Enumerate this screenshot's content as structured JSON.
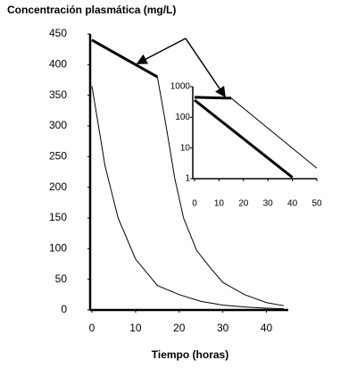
{
  "chart_data": [
    {
      "type": "line",
      "title": "Concentración plasmática (mg/L)",
      "x_label": "Tiempo (horas)",
      "xlim": [
        0,
        45
      ],
      "ylim": [
        0,
        450
      ],
      "xticks": [
        0,
        10,
        20,
        30,
        40
      ],
      "yticks": [
        0,
        50,
        100,
        150,
        200,
        250,
        300,
        350,
        400,
        450
      ],
      "series": [
        {
          "color": "#000000",
          "line_width": 3,
          "x": [
            0,
            15
          ],
          "values": [
            440,
            380
          ]
        },
        {
          "color": "#000000",
          "line_width": 1,
          "x": [
            15,
            17,
            19,
            21,
            24,
            27,
            30,
            35,
            40,
            44
          ],
          "values": [
            380,
            300,
            214,
            150,
            97,
            70,
            45,
            25,
            12,
            7
          ]
        },
        {
          "color": "#000000",
          "line_width": 1,
          "x": [
            0,
            3,
            6,
            10,
            15,
            20,
            25,
            30,
            35,
            40,
            44
          ],
          "values": [
            365,
            235,
            150,
            83,
            40,
            25,
            14,
            8,
            5,
            3,
            2
          ]
        }
      ]
    },
    {
      "type": "line",
      "ylog": true,
      "xlim": [
        0,
        50
      ],
      "ylim": [
        1,
        1000
      ],
      "xticks": [
        0,
        10,
        20,
        30,
        40,
        50
      ],
      "yticks": [
        1,
        10,
        100,
        1000
      ],
      "series": [
        {
          "color": "#000000",
          "line_width": 3,
          "x": [
            0,
            15
          ],
          "values": [
            450,
            420
          ]
        },
        {
          "color": "#000000",
          "line_width": 1,
          "x": [
            15,
            50
          ],
          "values": [
            420,
            2.2
          ]
        },
        {
          "color": "#000000",
          "line_width": 3,
          "x": [
            0,
            40
          ],
          "values": [
            365,
            1.1
          ]
        }
      ]
    }
  ]
}
